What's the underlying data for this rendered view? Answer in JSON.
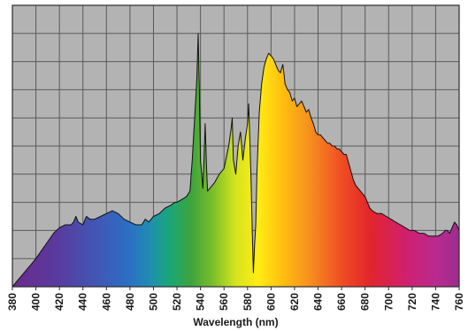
{
  "chart_data": {
    "type": "area",
    "title": "",
    "xlabel": "Wavelength (nm)",
    "ylabel": "",
    "xlim": [
      380,
      760
    ],
    "ylim": [
      0,
      1
    ],
    "grid": true,
    "legend": "none",
    "x_ticks": [
      380,
      400,
      420,
      440,
      460,
      480,
      500,
      520,
      540,
      560,
      580,
      600,
      620,
      640,
      660,
      680,
      700,
      720,
      740,
      760
    ],
    "x_tick_labels": [
      "380",
      "400",
      "420",
      "440",
      "460",
      "480",
      "500",
      "520",
      "540",
      "560",
      "580",
      "600",
      "620",
      "640",
      "660",
      "680",
      "700",
      "720",
      "740",
      "760"
    ],
    "series": [
      {
        "values": [
          [
            380,
            0.0
          ],
          [
            384,
            0.02
          ],
          [
            388,
            0.04
          ],
          [
            392,
            0.06
          ],
          [
            396,
            0.08
          ],
          [
            400,
            0.1
          ],
          [
            405,
            0.13
          ],
          [
            410,
            0.16
          ],
          [
            415,
            0.19
          ],
          [
            420,
            0.21
          ],
          [
            425,
            0.22
          ],
          [
            430,
            0.22
          ],
          [
            432,
            0.23
          ],
          [
            434,
            0.25
          ],
          [
            436,
            0.23
          ],
          [
            440,
            0.22
          ],
          [
            443,
            0.25
          ],
          [
            446,
            0.24
          ],
          [
            450,
            0.24
          ],
          [
            455,
            0.25
          ],
          [
            460,
            0.26
          ],
          [
            465,
            0.27
          ],
          [
            470,
            0.26
          ],
          [
            475,
            0.24
          ],
          [
            480,
            0.23
          ],
          [
            485,
            0.22
          ],
          [
            490,
            0.22
          ],
          [
            493,
            0.24
          ],
          [
            496,
            0.23
          ],
          [
            500,
            0.25
          ],
          [
            505,
            0.26
          ],
          [
            510,
            0.28
          ],
          [
            515,
            0.29
          ],
          [
            518,
            0.3
          ],
          [
            520,
            0.3
          ],
          [
            524,
            0.31
          ],
          [
            528,
            0.32
          ],
          [
            531,
            0.34
          ],
          [
            533,
            0.45
          ],
          [
            535,
            0.6
          ],
          [
            536,
            0.67
          ],
          [
            537,
            0.75
          ],
          [
            538,
            0.9
          ],
          [
            539,
            0.7
          ],
          [
            540,
            0.45
          ],
          [
            541,
            0.4
          ],
          [
            542,
            0.35
          ],
          [
            543,
            0.45
          ],
          [
            544,
            0.58
          ],
          [
            545,
            0.44
          ],
          [
            546,
            0.34
          ],
          [
            548,
            0.35
          ],
          [
            552,
            0.37
          ],
          [
            556,
            0.4
          ],
          [
            560,
            0.42
          ],
          [
            564,
            0.5
          ],
          [
            566,
            0.56
          ],
          [
            567,
            0.6
          ],
          [
            568,
            0.45
          ],
          [
            570,
            0.4
          ],
          [
            572,
            0.5
          ],
          [
            574,
            0.55
          ],
          [
            576,
            0.45
          ],
          [
            578,
            0.52
          ],
          [
            580,
            0.58
          ],
          [
            581,
            0.65
          ],
          [
            582,
            0.52
          ],
          [
            583,
            0.38
          ],
          [
            584,
            0.2
          ],
          [
            585,
            0.05
          ],
          [
            586,
            0.15
          ],
          [
            587,
            0.22
          ],
          [
            588,
            0.4
          ],
          [
            590,
            0.62
          ],
          [
            592,
            0.72
          ],
          [
            594,
            0.78
          ],
          [
            596,
            0.81
          ],
          [
            598,
            0.83
          ],
          [
            600,
            0.82
          ],
          [
            602,
            0.81
          ],
          [
            604,
            0.79
          ],
          [
            606,
            0.77
          ],
          [
            608,
            0.76
          ],
          [
            610,
            0.79
          ],
          [
            612,
            0.72
          ],
          [
            614,
            0.7
          ],
          [
            616,
            0.69
          ],
          [
            618,
            0.66
          ],
          [
            620,
            0.67
          ],
          [
            622,
            0.64
          ],
          [
            624,
            0.65
          ],
          [
            626,
            0.66
          ],
          [
            628,
            0.64
          ],
          [
            630,
            0.62
          ],
          [
            632,
            0.63
          ],
          [
            634,
            0.6
          ],
          [
            636,
            0.58
          ],
          [
            638,
            0.55
          ],
          [
            640,
            0.54
          ],
          [
            642,
            0.54
          ],
          [
            644,
            0.53
          ],
          [
            646,
            0.52
          ],
          [
            648,
            0.51
          ],
          [
            650,
            0.51
          ],
          [
            652,
            0.5
          ],
          [
            654,
            0.5
          ],
          [
            656,
            0.49
          ],
          [
            658,
            0.49
          ],
          [
            660,
            0.48
          ],
          [
            662,
            0.47
          ],
          [
            664,
            0.47
          ],
          [
            666,
            0.44
          ],
          [
            668,
            0.41
          ],
          [
            670,
            0.38
          ],
          [
            672,
            0.36
          ],
          [
            674,
            0.35
          ],
          [
            676,
            0.34
          ],
          [
            678,
            0.33
          ],
          [
            680,
            0.32
          ],
          [
            682,
            0.3
          ],
          [
            684,
            0.28
          ],
          [
            686,
            0.27
          ],
          [
            690,
            0.26
          ],
          [
            694,
            0.26
          ],
          [
            698,
            0.25
          ],
          [
            702,
            0.24
          ],
          [
            706,
            0.23
          ],
          [
            710,
            0.22
          ],
          [
            714,
            0.21
          ],
          [
            718,
            0.2
          ],
          [
            722,
            0.2
          ],
          [
            726,
            0.19
          ],
          [
            730,
            0.19
          ],
          [
            734,
            0.18
          ],
          [
            738,
            0.18
          ],
          [
            742,
            0.18
          ],
          [
            746,
            0.19
          ],
          [
            748,
            0.2
          ],
          [
            750,
            0.2
          ],
          [
            752,
            0.19
          ],
          [
            754,
            0.21
          ],
          [
            756,
            0.23
          ],
          [
            758,
            0.22
          ],
          [
            760,
            0.2
          ]
        ]
      }
    ]
  }
}
